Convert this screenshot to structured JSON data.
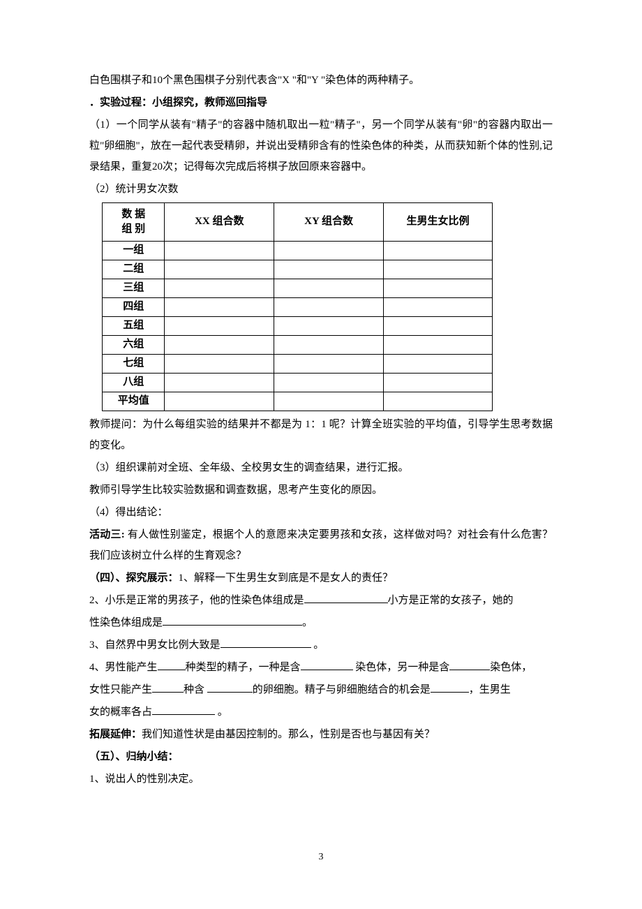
{
  "intro_text": "白色围棋子和10个黑色围棋子分别代表含\"X \"和\"Y \"染色体的两种精子。",
  "exp_process_heading": "．实验过程：小组探究，教师巡回指导",
  "step1": "（1）一个同学从装有\"精子\"的容器中随机取出一粒\"精子\"，另一个同学从装有\"卵\"的容器内取出一粒\"卵细胞\"，放在一起代表受精卵，并说出受精卵含有的性染色体的种类，从而获知新个体的性别,记录结果，重复20次；记得每次完成后将棋子放回原来容器中。",
  "step2_intro": "（2）统计男女次数",
  "table": {
    "header_cell": "数 据\n组 别",
    "columns": [
      "XX 组合数",
      "XY 组合数",
      "生男生女比例"
    ],
    "rows": [
      "一组",
      "二组",
      "三组",
      "四组",
      "五组",
      "六组",
      "七组",
      "八组",
      "平均值"
    ]
  },
  "teacher_q1": "教师提问：为什么每组实验的结果并不都是为 1：1 呢？计算全班实验的平均值，引导学生思考数据的变化。",
  "step3": "（3）组织课前对全班、全年级、全校男女生的调查结果，进行汇报。",
  "teacher_guide": "教师引导学生比较实验数据和调查数据，思考产生变化的原因。",
  "step4": "（4）得出结论：",
  "activity3": {
    "label": "活动三:",
    "text": " 有人做性别鉴定，根据个人的意愿来决定要男孩和女孩，这样做对吗？对社会有什么危害？我们应该树立什么样的生育观念？"
  },
  "section4": {
    "label": "（四）、探究展示：",
    "q1": "1、解释一下生男生女到底是不是女人的责任？",
    "q2a": "2、小乐是正常的男孩子，他的性染色体组成是",
    "q2b": "小方是正常的女孩子，她的",
    "q2c": "性染色体组成是",
    "q2d": "。",
    "q3a": "3、自然界中男女比例大致是",
    "q3b": " 。",
    "q4a": "4、男性能产生",
    "q4b": "种类型的精子，一种是含",
    "q4c": " 染色体，另一种是含",
    "q4d": "染色体，",
    "q4e": "女性只能产生",
    "q4f": "种含 ",
    "q4g": "的卵细胞。精子与卵细胞结合的机会是",
    "q4h": "，生男生",
    "q4i": "女的概率各占",
    "q4j": " 。"
  },
  "extension": {
    "label": "拓展延伸：",
    "text": "我们知道性状是由基因控制的。那么，性别是否也与基因有关？"
  },
  "section5": {
    "label": "（五）、归纳小结：",
    "item1": "1、说出人的性别决定。"
  },
  "page_number": "3",
  "blanks": {
    "w1": "120px",
    "w2": "200px",
    "w3": "130px",
    "w4": "40px",
    "w5": "75px",
    "w6": "58px",
    "w7": "45px",
    "w8": "65px",
    "w9": "55px",
    "w10": "90px"
  }
}
